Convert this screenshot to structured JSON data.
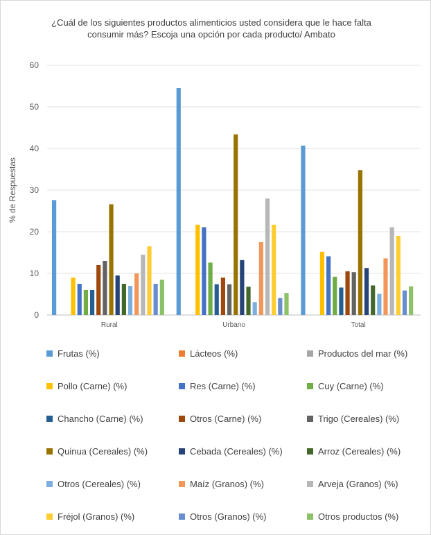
{
  "chart_data": {
    "type": "bar",
    "title_line1": "¿Cuál de los siguientes productos alimenticios usted considera que le hace falta",
    "title_line2": "consumir más? Escoja una opción por cada producto/ Ambato",
    "ylabel": "% de Respuestas",
    "xlabel": "",
    "ylim": [
      0,
      60
    ],
    "yticks": [
      0,
      10,
      20,
      30,
      40,
      50,
      60
    ],
    "grid": true,
    "legend_position": "bottom",
    "categories": [
      "Rural",
      "Urbano",
      "Total"
    ],
    "series": [
      {
        "name": "Frutas (%)",
        "color": "#5b9bd5",
        "values": [
          27.6,
          54.5,
          40.7
        ]
      },
      {
        "name": "Lácteos (%)",
        "color": "#ed7d31",
        "values": [
          0,
          0,
          0
        ]
      },
      {
        "name": "Productos del mar (%)",
        "color": "#a5a5a5",
        "values": [
          0,
          0,
          0
        ]
      },
      {
        "name": "Pollo (Carne) (%)",
        "color": "#ffc000",
        "values": [
          9.0,
          21.7,
          15.2
        ]
      },
      {
        "name": "Res (Carne) (%)",
        "color": "#4472c4",
        "values": [
          7.5,
          21.1,
          14.1
        ]
      },
      {
        "name": "Cuy (Carne) (%)",
        "color": "#70ad47",
        "values": [
          6.0,
          12.6,
          9.2
        ]
      },
      {
        "name": "Chancho (Carne) (%)",
        "color": "#255e91",
        "values": [
          6.0,
          7.4,
          6.6
        ]
      },
      {
        "name": "Otros (Carne) (%)",
        "color": "#9e480e",
        "values": [
          12.0,
          9.0,
          10.5
        ]
      },
      {
        "name": "Trigo (Cereales) (%)",
        "color": "#636363",
        "values": [
          13.0,
          7.4,
          10.3
        ]
      },
      {
        "name": "Quinua (Cereales) (%)",
        "color": "#997300",
        "values": [
          26.6,
          43.4,
          34.8
        ]
      },
      {
        "name": "Cebada (Cereales) (%)",
        "color": "#264478",
        "values": [
          9.5,
          13.2,
          11.3
        ]
      },
      {
        "name": "Arroz (Cereales) (%)",
        "color": "#43682b",
        "values": [
          7.5,
          6.8,
          7.1
        ]
      },
      {
        "name": "Otros (Cereales) (%)",
        "color": "#7cafdd",
        "values": [
          7.0,
          3.1,
          5.1
        ]
      },
      {
        "name": "Maíz (Granos) (%)",
        "color": "#f1975a",
        "values": [
          10.0,
          17.5,
          13.6
        ]
      },
      {
        "name": "Arveja (Granos) (%)",
        "color": "#b7b7b7",
        "values": [
          14.5,
          28.0,
          21.1
        ]
      },
      {
        "name": "Fréjol (Granos) (%)",
        "color": "#ffcd33",
        "values": [
          16.5,
          21.7,
          19.0
        ]
      },
      {
        "name": "Otros (Granos) (%)",
        "color": "#698ed0",
        "values": [
          7.5,
          4.1,
          5.9
        ]
      },
      {
        "name": "Otros productos (%)",
        "color": "#8cc168",
        "values": [
          8.5,
          5.3,
          6.9
        ]
      }
    ]
  }
}
